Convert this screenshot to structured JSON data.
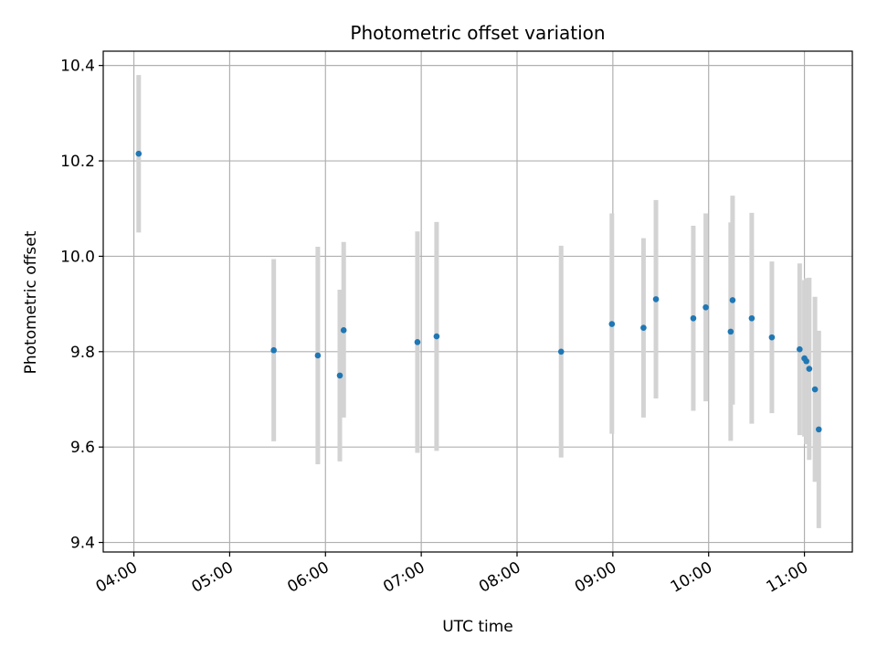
{
  "chart_data": {
    "type": "scatter",
    "title": "Photometric offset variation",
    "xlabel": "UTC time",
    "ylabel": "Photometric offset",
    "x_unit": "hours UTC",
    "xlim": [
      3.68,
      11.5
    ],
    "ylim": [
      9.38,
      10.43
    ],
    "x_ticks": [
      4,
      5,
      6,
      7,
      8,
      9,
      10,
      11
    ],
    "x_tick_labels": [
      "04:00",
      "05:00",
      "06:00",
      "07:00",
      "08:00",
      "09:00",
      "10:00",
      "11:00"
    ],
    "y_ticks": [
      9.4,
      9.6,
      9.8,
      10.0,
      10.2,
      10.4
    ],
    "y_tick_labels": [
      "9.4",
      "9.6",
      "9.8",
      "10.0",
      "10.2",
      "10.4"
    ],
    "grid": true,
    "marker_color": "#1f77b4",
    "errorbar_color": "#d3d3d3",
    "points": [
      {
        "x": 4.05,
        "y": 10.215,
        "lo": 10.05,
        "hi": 10.38
      },
      {
        "x": 5.46,
        "y": 9.803,
        "lo": 9.612,
        "hi": 9.994
      },
      {
        "x": 5.92,
        "y": 9.792,
        "lo": 9.564,
        "hi": 10.02
      },
      {
        "x": 6.15,
        "y": 9.75,
        "lo": 9.57,
        "hi": 9.93
      },
      {
        "x": 6.19,
        "y": 9.845,
        "lo": 9.662,
        "hi": 10.03
      },
      {
        "x": 6.96,
        "y": 9.82,
        "lo": 9.588,
        "hi": 10.052
      },
      {
        "x": 7.16,
        "y": 9.832,
        "lo": 9.592,
        "hi": 10.072
      },
      {
        "x": 8.46,
        "y": 9.8,
        "lo": 9.578,
        "hi": 10.022
      },
      {
        "x": 8.99,
        "y": 9.858,
        "lo": 9.628,
        "hi": 10.09
      },
      {
        "x": 9.32,
        "y": 9.85,
        "lo": 9.662,
        "hi": 10.038
      },
      {
        "x": 9.45,
        "y": 9.91,
        "lo": 9.702,
        "hi": 10.118
      },
      {
        "x": 9.84,
        "y": 9.87,
        "lo": 9.676,
        "hi": 10.064
      },
      {
        "x": 9.97,
        "y": 9.893,
        "lo": 9.696,
        "hi": 10.09
      },
      {
        "x": 10.23,
        "y": 9.842,
        "lo": 9.613,
        "hi": 10.071
      },
      {
        "x": 10.25,
        "y": 9.908,
        "lo": 9.689,
        "hi": 10.127
      },
      {
        "x": 10.45,
        "y": 9.87,
        "lo": 9.649,
        "hi": 10.091
      },
      {
        "x": 10.66,
        "y": 9.83,
        "lo": 9.671,
        "hi": 9.989
      },
      {
        "x": 10.95,
        "y": 9.805,
        "lo": 9.625,
        "hi": 9.985
      },
      {
        "x": 11.0,
        "y": 9.786,
        "lo": 9.622,
        "hi": 9.95
      },
      {
        "x": 11.02,
        "y": 9.78,
        "lo": 9.606,
        "hi": 9.954
      },
      {
        "x": 11.05,
        "y": 9.764,
        "lo": 9.573,
        "hi": 9.955
      },
      {
        "x": 11.11,
        "y": 9.721,
        "lo": 9.527,
        "hi": 9.915
      },
      {
        "x": 11.15,
        "y": 9.637,
        "lo": 9.43,
        "hi": 9.844
      }
    ]
  }
}
